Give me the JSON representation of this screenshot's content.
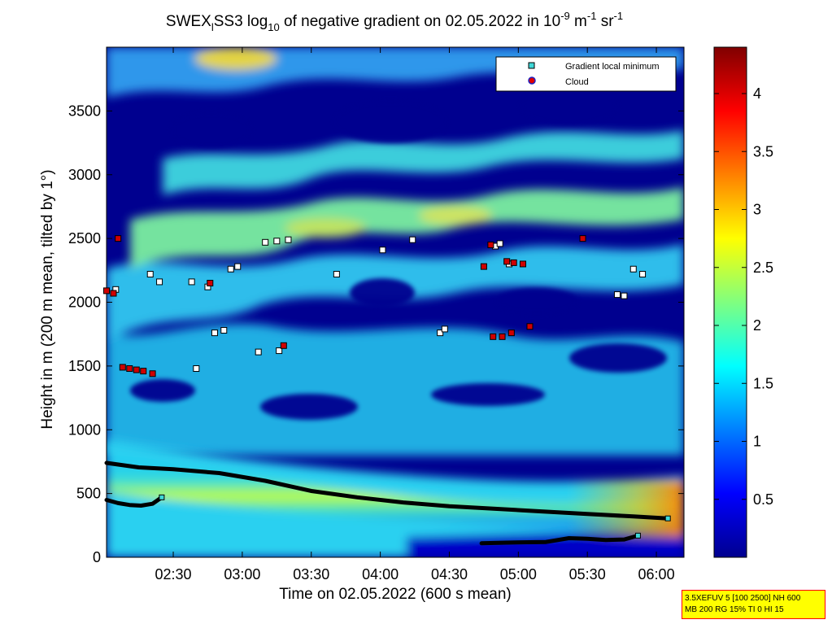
{
  "chart_data": {
    "type": "heatmap",
    "title_parts": {
      "instrument": "SWEX",
      "instrument_sub": "l",
      "instrument_rest": "SS3 log",
      "log_base": "10",
      "middle": " of negative gradient on 02.05.2022 in 10",
      "exp1": "-9",
      "unit_m": " m",
      "exp2": "-1",
      "unit_sr": " sr",
      "exp3": "-1"
    },
    "xlabel": "Time on 02.05.2022 (600 s mean)",
    "ylabel": "Height in m (200 m mean, tilted by 1°)",
    "x_ticks": [
      "02:30",
      "03:00",
      "03:30",
      "04:00",
      "04:30",
      "05:00",
      "05:30",
      "06:00"
    ],
    "x_tick_minutes": [
      150,
      180,
      210,
      240,
      270,
      300,
      330,
      360
    ],
    "xlim_minutes": [
      121,
      372
    ],
    "y_ticks": [
      "0",
      "500",
      "1000",
      "1500",
      "2000",
      "2500",
      "3000",
      "3500"
    ],
    "y_tick_values": [
      0,
      500,
      1000,
      1500,
      2000,
      2500,
      3000,
      3500
    ],
    "ylim": [
      0,
      4000
    ],
    "colorbar": {
      "ticks": [
        "0.5",
        "1",
        "1.5",
        "2",
        "2.5",
        "3",
        "3.5",
        "4"
      ],
      "tick_values": [
        0.5,
        1,
        1.5,
        2,
        2.5,
        3,
        3.5,
        4
      ],
      "range": [
        0,
        4.4
      ],
      "colormap": "jet"
    },
    "legend": {
      "placement": "top-right",
      "entries": [
        {
          "label": "Gradient local minimum",
          "marker": "square",
          "color": "#3fd8d8"
        },
        {
          "label": "Cloud",
          "marker": "circle",
          "color": "#e00000",
          "edge": "#2020c0"
        }
      ]
    },
    "layers": [
      {
        "name": "",
        "description": "dense lower gradient layer",
        "x": [
          121,
          135,
          150,
          170,
          190,
          210,
          230,
          250,
          270,
          290,
          310,
          330,
          350,
          365
        ],
        "y": [
          740,
          705,
          690,
          660,
          600,
          520,
          470,
          430,
          400,
          380,
          360,
          340,
          320,
          305
        ]
      },
      {
        "name": "",
        "description": "secondary low layer",
        "x": [
          121,
          126,
          131,
          136,
          141,
          145
        ],
        "y": [
          450,
          425,
          410,
          405,
          420,
          470
        ]
      },
      {
        "name": "",
        "description": "near-surface layer",
        "x": [
          284,
          295,
          305,
          312,
          322,
          330,
          338,
          346,
          352
        ],
        "y": [
          110,
          115,
          118,
          120,
          150,
          145,
          135,
          140,
          170
        ]
      }
    ],
    "gradient_minima": [
      {
        "x": 125,
        "y": 2100
      },
      {
        "x": 140,
        "y": 2220
      },
      {
        "x": 144,
        "y": 2160
      },
      {
        "x": 158,
        "y": 2160
      },
      {
        "x": 165,
        "y": 2120
      },
      {
        "x": 160,
        "y": 1480
      },
      {
        "x": 175,
        "y": 2260
      },
      {
        "x": 178,
        "y": 2280
      },
      {
        "x": 168,
        "y": 1760
      },
      {
        "x": 172,
        "y": 1780
      },
      {
        "x": 190,
        "y": 2470
      },
      {
        "x": 195,
        "y": 2480
      },
      {
        "x": 200,
        "y": 2490
      },
      {
        "x": 187,
        "y": 1610
      },
      {
        "x": 196,
        "y": 1620
      },
      {
        "x": 221,
        "y": 2220
      },
      {
        "x": 241,
        "y": 2410
      },
      {
        "x": 254,
        "y": 2490
      },
      {
        "x": 266,
        "y": 1760
      },
      {
        "x": 268,
        "y": 1790
      },
      {
        "x": 290,
        "y": 2440
      },
      {
        "x": 292,
        "y": 2460
      },
      {
        "x": 296,
        "y": 2300
      },
      {
        "x": 343,
        "y": 2060
      },
      {
        "x": 346,
        "y": 2050
      },
      {
        "x": 350,
        "y": 2260
      },
      {
        "x": 354,
        "y": 2220
      }
    ],
    "clouds": [
      {
        "x": 121,
        "y": 2090
      },
      {
        "x": 124,
        "y": 2070
      },
      {
        "x": 126,
        "y": 2500
      },
      {
        "x": 128,
        "y": 1490
      },
      {
        "x": 131,
        "y": 1480
      },
      {
        "x": 134,
        "y": 1470
      },
      {
        "x": 137,
        "y": 1460
      },
      {
        "x": 141,
        "y": 1440
      },
      {
        "x": 166,
        "y": 2150
      },
      {
        "x": 198,
        "y": 1660
      },
      {
        "x": 285,
        "y": 2280
      },
      {
        "x": 288,
        "y": 2450
      },
      {
        "x": 295,
        "y": 2320
      },
      {
        "x": 298,
        "y": 2310
      },
      {
        "x": 302,
        "y": 2300
      },
      {
        "x": 289,
        "y": 1730
      },
      {
        "x": 293,
        "y": 1730
      },
      {
        "x": 297,
        "y": 1760
      },
      {
        "x": 305,
        "y": 1810
      },
      {
        "x": 328,
        "y": 2500
      }
    ]
  },
  "info_box": {
    "line1": "3.5XEFUV 5 [100 2500] NH 600",
    "line2": "MB 200 RG 15% TI 0 HI 15"
  }
}
